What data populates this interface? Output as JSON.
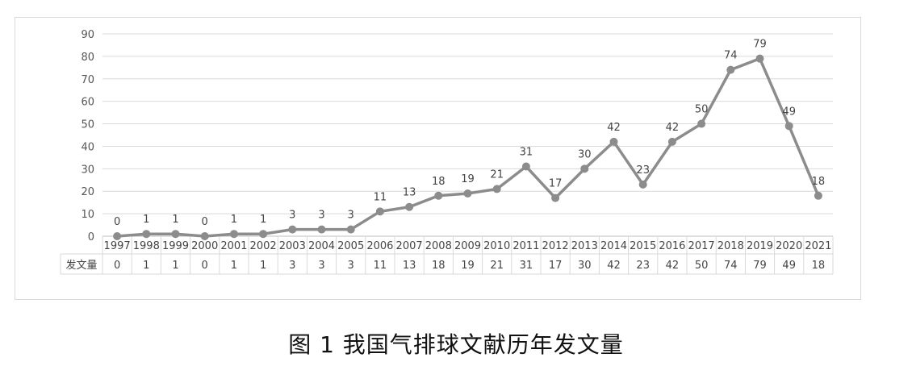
{
  "caption": "图 1  我国气排球文献历年发文量",
  "chart_data": {
    "type": "line",
    "title": "",
    "xlabel": "",
    "ylabel": "",
    "categories": [
      "1997",
      "1998",
      "1999",
      "2000",
      "2001",
      "2002",
      "2003",
      "2004",
      "2005",
      "2006",
      "2007",
      "2008",
      "2009",
      "2010",
      "2011",
      "2012",
      "2013",
      "2014",
      "2015",
      "2016",
      "2017",
      "2018",
      "2019",
      "2020",
      "2021"
    ],
    "series": [
      {
        "name": "发文量",
        "values": [
          0,
          1,
          1,
          0,
          1,
          1,
          3,
          3,
          3,
          11,
          13,
          18,
          19,
          21,
          31,
          17,
          30,
          42,
          23,
          42,
          50,
          74,
          79,
          49,
          18
        ]
      }
    ],
    "ylim": [
      0,
      90
    ],
    "yticks": [
      0,
      10,
      20,
      30,
      40,
      50,
      60,
      70,
      80,
      90
    ],
    "grid": true,
    "data_table": true,
    "data_labels": true,
    "line_color": "#8c8c8c",
    "grid_color": "#d9d9d9"
  }
}
